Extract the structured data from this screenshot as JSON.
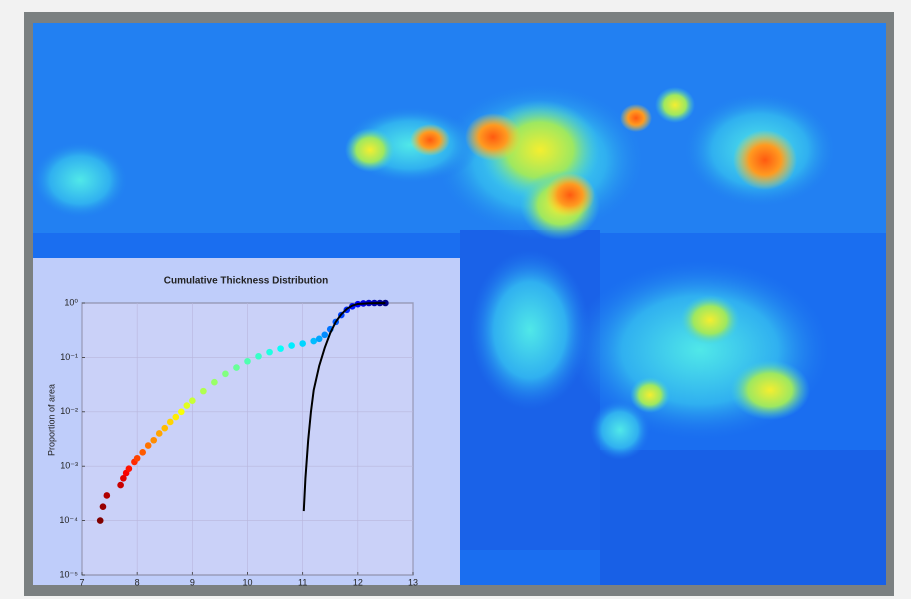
{
  "chart_data": {
    "type": "scatter",
    "title": "Cumulative Thickness Distribution",
    "y_label": "Proportion of area",
    "xlim": [
      7,
      13
    ],
    "xticks": [
      7,
      8,
      9,
      10,
      11,
      12,
      13
    ],
    "ylim": [
      1e-05,
      1
    ],
    "yticks": [
      {
        "value": 1e-05,
        "label": "10⁻⁵"
      },
      {
        "value": 0.0001,
        "label": "10⁻⁴"
      },
      {
        "value": 0.001,
        "label": "10⁻³"
      },
      {
        "value": 0.01,
        "label": "10⁻²"
      },
      {
        "value": 0.1,
        "label": "10⁻¹"
      },
      {
        "value": 1,
        "label": "10⁰"
      }
    ],
    "y_scale": "log",
    "grid": true,
    "series": [
      {
        "type": "scatter",
        "colormap": "jet_r",
        "x": [
          7.33,
          7.38,
          7.45,
          7.7,
          7.75,
          7.8,
          7.85,
          7.95,
          8.0,
          8.1,
          8.2,
          8.3,
          8.4,
          8.5,
          8.6,
          8.7,
          8.8,
          8.9,
          9.0,
          9.2,
          9.4,
          9.6,
          9.8,
          10.0,
          10.2,
          10.4,
          10.6,
          10.8,
          11.0,
          11.2,
          11.3,
          11.4,
          11.5,
          11.6,
          11.7,
          11.8,
          11.9,
          12.0,
          12.1,
          12.2,
          12.3,
          12.4,
          12.5
        ],
        "y": [
          0.0001,
          0.00018,
          0.00029,
          0.00045,
          0.0006,
          0.00075,
          0.0009,
          0.0012,
          0.0014,
          0.0018,
          0.0024,
          0.003,
          0.004,
          0.005,
          0.0065,
          0.008,
          0.01,
          0.013,
          0.016,
          0.024,
          0.035,
          0.05,
          0.065,
          0.085,
          0.105,
          0.125,
          0.145,
          0.165,
          0.18,
          0.2,
          0.22,
          0.26,
          0.33,
          0.45,
          0.6,
          0.75,
          0.87,
          0.95,
          0.98,
          1,
          1,
          1,
          1
        ]
      },
      {
        "type": "line",
        "color": "#000000",
        "x": [
          11.02,
          11.05,
          11.1,
          11.15,
          11.2,
          11.3,
          11.4,
          11.5,
          11.6,
          11.7,
          11.8,
          11.9,
          12.0,
          12.2,
          12.5
        ],
        "y": [
          0.00015,
          0.0006,
          0.003,
          0.01,
          0.025,
          0.07,
          0.15,
          0.28,
          0.45,
          0.62,
          0.78,
          0.9,
          0.96,
          0.99,
          1
        ]
      }
    ]
  }
}
